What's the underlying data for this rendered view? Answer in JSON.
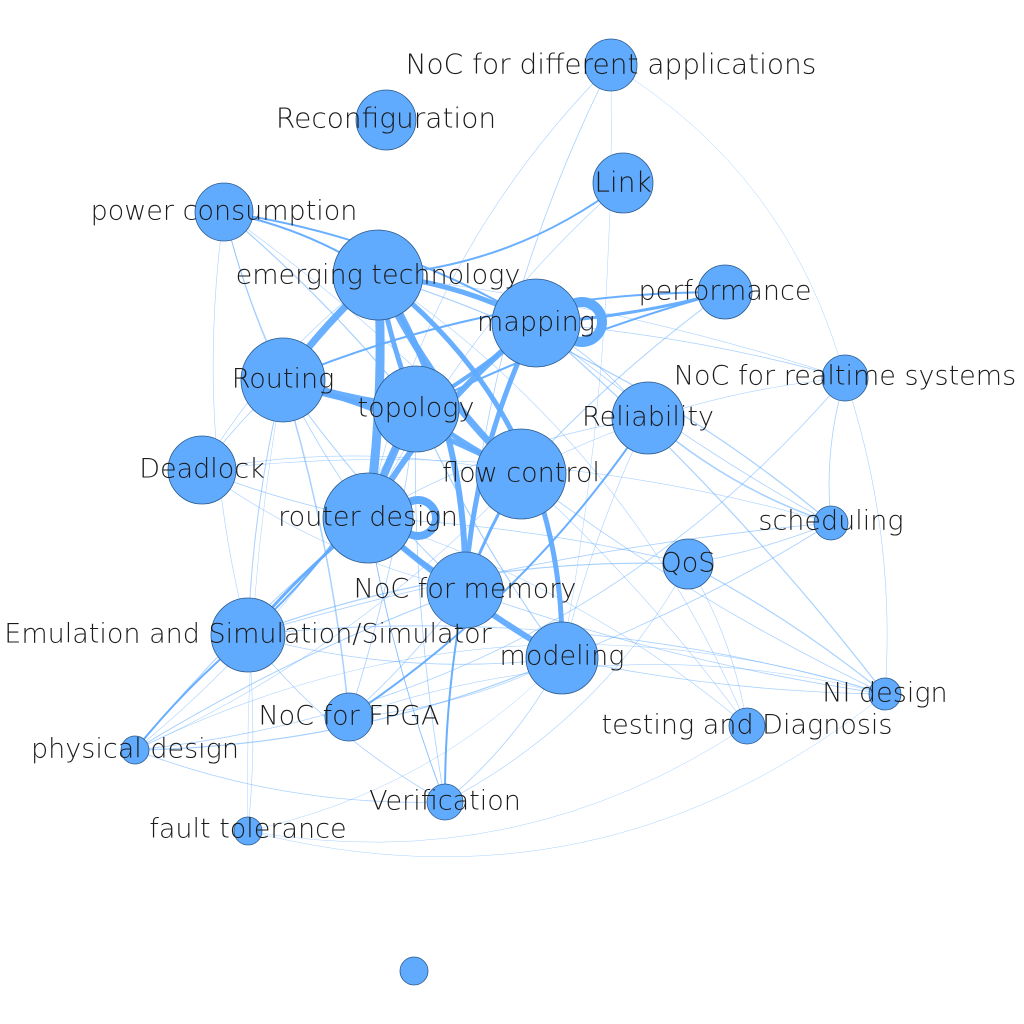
{
  "diagram": {
    "type": "network-graph",
    "node_color": "#61abff",
    "edge_color": "#61abff",
    "label_color": "#1b1b1b",
    "background": "#ffffff"
  },
  "nodes": [
    {
      "id": "noc-apps",
      "label": "NoC for different applications"
    },
    {
      "id": "reconfig",
      "label": "Reconfiguration"
    },
    {
      "id": "link",
      "label": "Link"
    },
    {
      "id": "power",
      "label": "power consumption"
    },
    {
      "id": "emerging",
      "label": "emerging technology"
    },
    {
      "id": "performance",
      "label": "performance"
    },
    {
      "id": "mapping",
      "label": "mapping"
    },
    {
      "id": "realtime",
      "label": "NoC for realtime systems"
    },
    {
      "id": "routing",
      "label": "Routing"
    },
    {
      "id": "topology",
      "label": "topology"
    },
    {
      "id": "reliability",
      "label": "Reliability"
    },
    {
      "id": "deadlock",
      "label": "Deadlock"
    },
    {
      "id": "flow",
      "label": "flow control"
    },
    {
      "id": "router",
      "label": "router design"
    },
    {
      "id": "scheduling",
      "label": "scheduling"
    },
    {
      "id": "qos",
      "label": "QoS"
    },
    {
      "id": "memory",
      "label": "NoC for memory"
    },
    {
      "id": "emulation",
      "label": "Emulation and Simulation/Simulator"
    },
    {
      "id": "modeling",
      "label": "modeling"
    },
    {
      "id": "ni",
      "label": "NI design"
    },
    {
      "id": "fpga",
      "label": "NoC for FPGA"
    },
    {
      "id": "testing",
      "label": "testing and Diagnosis"
    },
    {
      "id": "physical",
      "label": "physical design"
    },
    {
      "id": "verification",
      "label": "Verification"
    },
    {
      "id": "fault",
      "label": "fault tolerance"
    },
    {
      "id": "isolated",
      "label": ""
    }
  ]
}
